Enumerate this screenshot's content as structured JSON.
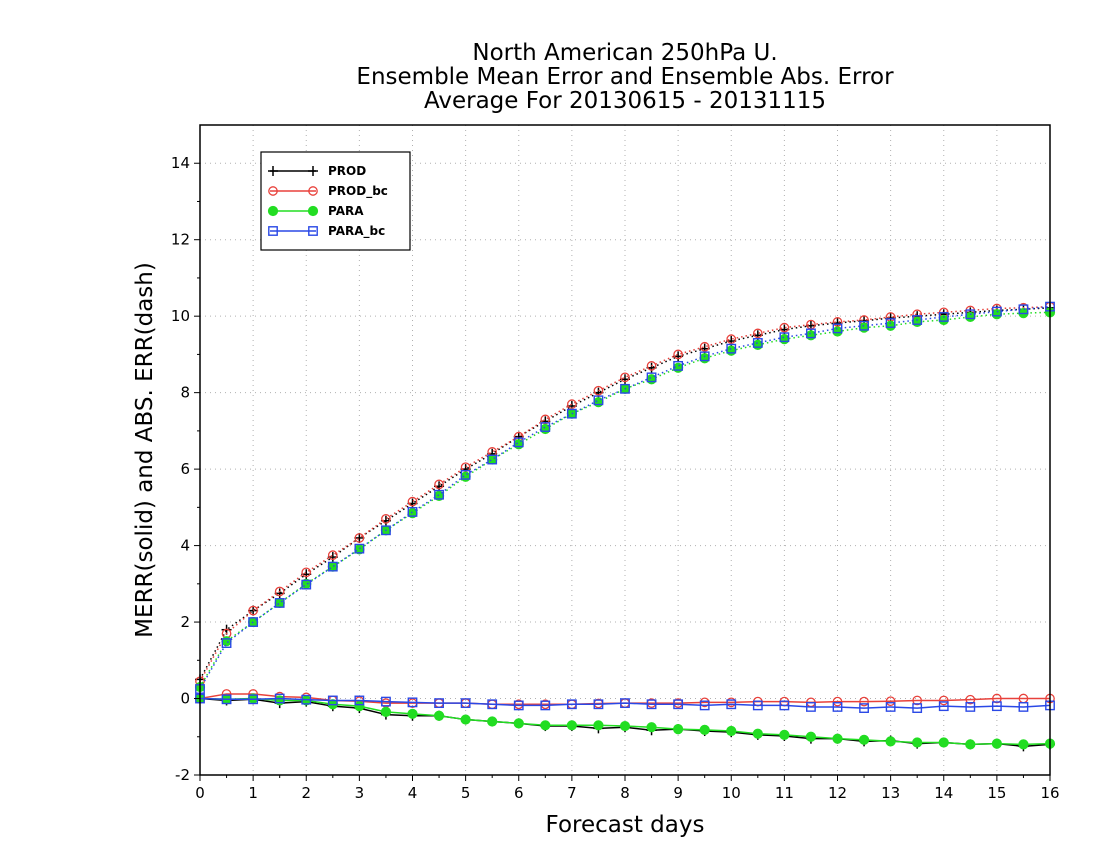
{
  "chart_data": {
    "type": "line",
    "title": [
      "North American 250hPa U.",
      "Ensemble Mean Error and Ensemble Abs. Error",
      "Average For 20130615 - 20131115"
    ],
    "xlabel": "Forecast days",
    "ylabel": "MERR(solid) and ABS. ERR(dash)",
    "xlim": [
      0,
      16
    ],
    "ylim": [
      -2,
      15
    ],
    "xticks": [
      0,
      1,
      2,
      3,
      4,
      5,
      6,
      7,
      8,
      9,
      10,
      11,
      12,
      13,
      14,
      15,
      16
    ],
    "yticks": [
      -2,
      0,
      2,
      4,
      6,
      8,
      10,
      12,
      14
    ],
    "grid": true,
    "legend_position": "top-left",
    "x": [
      0,
      0.5,
      1,
      1.5,
      2,
      2.5,
      3,
      3.5,
      4,
      4.5,
      5,
      5.5,
      6,
      6.5,
      7,
      7.5,
      8,
      8.5,
      9,
      9.5,
      10,
      10.5,
      11,
      11.5,
      12,
      12.5,
      13,
      13.5,
      14,
      14.5,
      15,
      15.5,
      16
    ],
    "series": [
      {
        "name": "PROD",
        "color": "#000000",
        "marker": "plus",
        "merr": [
          0.0,
          -0.05,
          -0.02,
          -0.12,
          -0.08,
          -0.2,
          -0.25,
          -0.42,
          -0.45,
          -0.45,
          -0.55,
          -0.6,
          -0.65,
          -0.72,
          -0.72,
          -0.78,
          -0.75,
          -0.83,
          -0.8,
          -0.85,
          -0.88,
          -0.95,
          -0.98,
          -1.05,
          -1.05,
          -1.12,
          -1.1,
          -1.18,
          -1.15,
          -1.2,
          -1.18,
          -1.25,
          -1.2
        ],
        "abs_err": [
          0.5,
          1.8,
          2.3,
          2.75,
          3.25,
          3.7,
          4.2,
          4.65,
          5.1,
          5.55,
          6.0,
          6.4,
          6.85,
          7.25,
          7.65,
          8.0,
          8.35,
          8.65,
          8.95,
          9.15,
          9.35,
          9.5,
          9.65,
          9.75,
          9.82,
          9.88,
          9.95,
          10.0,
          10.05,
          10.1,
          10.15,
          10.18,
          10.22
        ]
      },
      {
        "name": "PROD_bc",
        "color": "#e8413b",
        "marker": "circle",
        "merr": [
          0.0,
          0.12,
          0.12,
          0.05,
          0.03,
          -0.05,
          -0.07,
          -0.12,
          -0.12,
          -0.12,
          -0.12,
          -0.15,
          -0.15,
          -0.15,
          -0.15,
          -0.13,
          -0.12,
          -0.12,
          -0.12,
          -0.1,
          -0.1,
          -0.08,
          -0.08,
          -0.1,
          -0.08,
          -0.08,
          -0.07,
          -0.05,
          -0.05,
          -0.03,
          0.0,
          0.0,
          0.0
        ],
        "abs_err": [
          0.45,
          1.7,
          2.3,
          2.8,
          3.3,
          3.75,
          4.2,
          4.7,
          5.15,
          5.6,
          6.05,
          6.45,
          6.85,
          7.3,
          7.7,
          8.05,
          8.4,
          8.7,
          9.0,
          9.2,
          9.4,
          9.55,
          9.7,
          9.78,
          9.85,
          9.9,
          9.98,
          10.05,
          10.1,
          10.15,
          10.2,
          10.22,
          10.25
        ]
      },
      {
        "name": "PARA",
        "color": "#22dd22",
        "marker": "filled-circle",
        "merr": [
          0.0,
          -0.02,
          0.0,
          -0.05,
          -0.05,
          -0.15,
          -0.2,
          -0.35,
          -0.4,
          -0.45,
          -0.55,
          -0.6,
          -0.65,
          -0.7,
          -0.7,
          -0.7,
          -0.72,
          -0.75,
          -0.8,
          -0.82,
          -0.85,
          -0.92,
          -0.95,
          -1.0,
          -1.05,
          -1.08,
          -1.12,
          -1.15,
          -1.15,
          -1.2,
          -1.18,
          -1.2,
          -1.18
        ],
        "abs_err": [
          0.3,
          1.5,
          2.0,
          2.5,
          3.0,
          3.45,
          3.9,
          4.4,
          4.85,
          5.3,
          5.8,
          6.25,
          6.65,
          7.05,
          7.45,
          7.75,
          8.1,
          8.35,
          8.65,
          8.9,
          9.1,
          9.25,
          9.4,
          9.5,
          9.6,
          9.7,
          9.75,
          9.85,
          9.9,
          9.98,
          10.05,
          10.08,
          10.1
        ]
      },
      {
        "name": "PARA_bc",
        "color": "#2a48e6",
        "marker": "square",
        "merr": [
          0.0,
          -0.02,
          -0.02,
          0.0,
          -0.03,
          -0.05,
          -0.05,
          -0.08,
          -0.1,
          -0.12,
          -0.12,
          -0.15,
          -0.18,
          -0.18,
          -0.15,
          -0.15,
          -0.12,
          -0.15,
          -0.15,
          -0.18,
          -0.15,
          -0.18,
          -0.18,
          -0.22,
          -0.22,
          -0.25,
          -0.22,
          -0.25,
          -0.2,
          -0.22,
          -0.2,
          -0.22,
          -0.18
        ],
        "abs_err": [
          0.25,
          1.45,
          2.0,
          2.5,
          2.98,
          3.45,
          3.92,
          4.4,
          4.88,
          5.33,
          5.85,
          6.25,
          6.7,
          7.1,
          7.45,
          7.8,
          8.1,
          8.4,
          8.7,
          8.95,
          9.15,
          9.3,
          9.45,
          9.55,
          9.68,
          9.75,
          9.82,
          9.9,
          9.98,
          10.05,
          10.12,
          10.18,
          10.25
        ]
      }
    ]
  }
}
